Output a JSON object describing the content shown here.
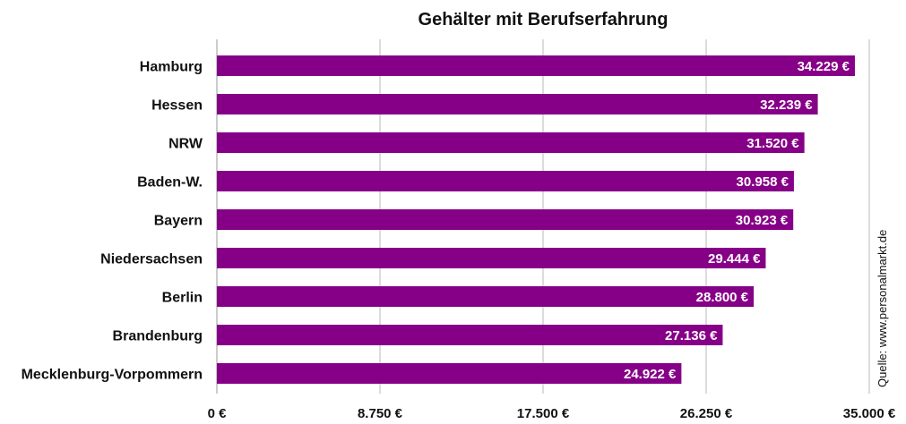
{
  "chart_data": {
    "type": "bar",
    "orientation": "horizontal",
    "title": "Gehälter mit Berufserfahrung",
    "categories": [
      "Hamburg",
      "Hessen",
      "NRW",
      "Baden-W.",
      "Bayern",
      "Niedersachsen",
      "Berlin",
      "Brandenburg",
      "Mecklenburg-Vorpommern"
    ],
    "values": [
      34229,
      32239,
      31520,
      30958,
      30923,
      29444,
      28800,
      27136,
      24922
    ],
    "value_labels": [
      "34.229 €",
      "32.239 €",
      "31.520 €",
      "30.958 €",
      "30.923 €",
      "29.444 €",
      "28.800 €",
      "27.136 €",
      "24.922 €"
    ],
    "xlim": [
      0,
      35000
    ],
    "xticks": [
      0,
      8750,
      17500,
      26250,
      35000
    ],
    "xtick_labels": [
      "0 €",
      "8.750 €",
      "17.500 €",
      "26.250 €",
      "35.000 €"
    ],
    "grid": true,
    "bar_color": "#860087",
    "source": "Quelle: www.personalmarkt.de"
  }
}
